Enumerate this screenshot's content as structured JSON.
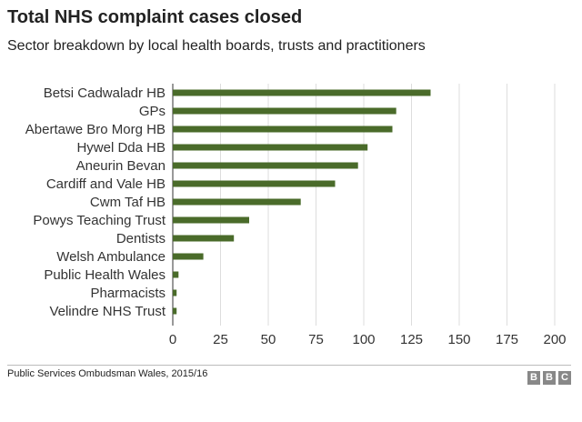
{
  "title": "Total NHS complaint cases closed",
  "subtitle": "Sector breakdown by local health boards, trusts and practitioners",
  "source": "Public Services Ombudsman Wales, 2015/16",
  "logo_letters": [
    "B",
    "B",
    "C"
  ],
  "colors": {
    "bar": "#4a6b2a",
    "grid": "#dddddd",
    "axis": "#333333"
  },
  "chart_data": {
    "type": "bar",
    "orientation": "horizontal",
    "categories": [
      "Betsi Cadwaladr HB",
      "GPs",
      "Abertawe Bro Morg HB",
      "Hywel Dda HB",
      "Aneurin Bevan",
      "Cardiff and Vale HB",
      "Cwm Taf HB",
      "Powys Teaching Trust",
      "Dentists",
      "Welsh Ambulance",
      "Public Health Wales",
      "Pharmacists",
      "Velindre NHS Trust"
    ],
    "values": [
      135,
      117,
      115,
      102,
      97,
      85,
      67,
      40,
      32,
      16,
      3,
      2,
      2
    ],
    "xticks": [
      0,
      25,
      50,
      75,
      100,
      125,
      150,
      175,
      200
    ],
    "xlim": [
      0,
      200
    ],
    "grid": true
  }
}
